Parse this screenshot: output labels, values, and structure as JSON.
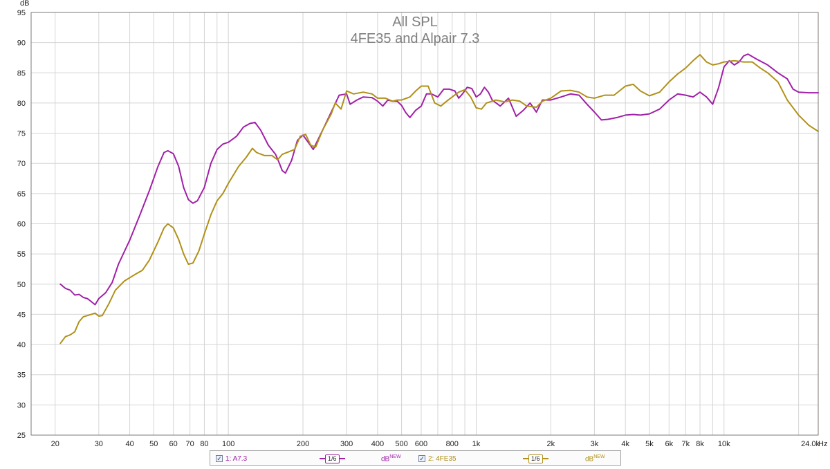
{
  "chart_data": {
    "type": "line",
    "title": "All SPL",
    "subtitle": "4FE35 and Alpair 7.3",
    "ylabel": "dB",
    "xunit": "Hz",
    "xscale": "log",
    "xlim": [
      16,
      24000
    ],
    "ylim": [
      25,
      95
    ],
    "grid": true,
    "yticks": [
      25,
      30,
      35,
      40,
      45,
      50,
      55,
      60,
      65,
      70,
      75,
      80,
      85,
      90,
      95
    ],
    "xticks": [
      {
        "v": 20,
        "label": "20"
      },
      {
        "v": 30,
        "label": "30"
      },
      {
        "v": 40,
        "label": "40"
      },
      {
        "v": 50,
        "label": "50"
      },
      {
        "v": 60,
        "label": "60"
      },
      {
        "v": 70,
        "label": "70"
      },
      {
        "v": 80,
        "label": "80"
      },
      {
        "v": 100,
        "label": "100"
      },
      {
        "v": 200,
        "label": "200"
      },
      {
        "v": 300,
        "label": "300"
      },
      {
        "v": 400,
        "label": "400"
      },
      {
        "v": 500,
        "label": "500"
      },
      {
        "v": 600,
        "label": "600"
      },
      {
        "v": 800,
        "label": "800"
      },
      {
        "v": 1000,
        "label": "1k"
      },
      {
        "v": 2000,
        "label": "2k"
      },
      {
        "v": 3000,
        "label": "3k"
      },
      {
        "v": 4000,
        "label": "4k"
      },
      {
        "v": 5000,
        "label": "5k"
      },
      {
        "v": 6000,
        "label": "6k"
      },
      {
        "v": 7000,
        "label": "7k"
      },
      {
        "v": 8000,
        "label": "8k"
      },
      {
        "v": 10000,
        "label": "10k"
      },
      {
        "v": 24000,
        "label": "24.0k"
      }
    ],
    "series": [
      {
        "name": "1: A7.3",
        "color": "#a020a8",
        "points": [
          [
            21,
            50.0
          ],
          [
            22,
            49.3
          ],
          [
            23,
            49.0
          ],
          [
            24,
            48.2
          ],
          [
            25,
            48.3
          ],
          [
            26,
            47.8
          ],
          [
            27,
            47.6
          ],
          [
            28,
            47.1
          ],
          [
            29,
            46.6
          ],
          [
            30,
            47.6
          ],
          [
            32,
            48.6
          ],
          [
            34,
            50.3
          ],
          [
            36,
            53.3
          ],
          [
            40,
            57.3
          ],
          [
            44,
            61.5
          ],
          [
            48,
            65.5
          ],
          [
            52,
            69.5
          ],
          [
            55,
            71.8
          ],
          [
            57,
            72.1
          ],
          [
            60,
            71.6
          ],
          [
            63,
            69.5
          ],
          [
            66,
            66.0
          ],
          [
            69,
            64.0
          ],
          [
            72,
            63.4
          ],
          [
            75,
            63.8
          ],
          [
            80,
            66.0
          ],
          [
            85,
            70.0
          ],
          [
            90,
            72.3
          ],
          [
            95,
            73.2
          ],
          [
            100,
            73.5
          ],
          [
            108,
            74.5
          ],
          [
            115,
            76.0
          ],
          [
            122,
            76.6
          ],
          [
            128,
            76.8
          ],
          [
            135,
            75.5
          ],
          [
            145,
            73.0
          ],
          [
            155,
            71.5
          ],
          [
            160,
            70.2
          ],
          [
            165,
            68.8
          ],
          [
            170,
            68.4
          ],
          [
            180,
            70.5
          ],
          [
            190,
            73.8
          ],
          [
            200,
            74.7
          ],
          [
            210,
            73.5
          ],
          [
            220,
            72.3
          ],
          [
            240,
            75.5
          ],
          [
            260,
            78.5
          ],
          [
            280,
            81.3
          ],
          [
            300,
            81.5
          ],
          [
            310,
            79.8
          ],
          [
            330,
            80.5
          ],
          [
            350,
            81.0
          ],
          [
            380,
            80.9
          ],
          [
            400,
            80.3
          ],
          [
            420,
            79.5
          ],
          [
            440,
            80.5
          ],
          [
            460,
            80.3
          ],
          [
            480,
            80.3
          ],
          [
            500,
            79.6
          ],
          [
            520,
            78.4
          ],
          [
            540,
            77.6
          ],
          [
            570,
            78.8
          ],
          [
            600,
            79.5
          ],
          [
            630,
            81.5
          ],
          [
            660,
            81.5
          ],
          [
            700,
            81.0
          ],
          [
            740,
            82.3
          ],
          [
            780,
            82.3
          ],
          [
            820,
            82.0
          ],
          [
            850,
            80.8
          ],
          [
            880,
            81.5
          ],
          [
            920,
            82.6
          ],
          [
            960,
            82.4
          ],
          [
            1000,
            81.0
          ],
          [
            1040,
            81.5
          ],
          [
            1080,
            82.6
          ],
          [
            1120,
            81.8
          ],
          [
            1160,
            80.5
          ],
          [
            1250,
            79.5
          ],
          [
            1350,
            80.8
          ],
          [
            1450,
            77.8
          ],
          [
            1550,
            78.8
          ],
          [
            1650,
            80.0
          ],
          [
            1750,
            78.5
          ],
          [
            1850,
            80.5
          ],
          [
            2000,
            80.5
          ],
          [
            2200,
            81.0
          ],
          [
            2400,
            81.5
          ],
          [
            2600,
            81.3
          ],
          [
            2800,
            79.8
          ],
          [
            3000,
            78.5
          ],
          [
            3200,
            77.2
          ],
          [
            3400,
            77.3
          ],
          [
            3700,
            77.6
          ],
          [
            4000,
            78.0
          ],
          [
            4300,
            78.1
          ],
          [
            4600,
            78.0
          ],
          [
            5000,
            78.2
          ],
          [
            5500,
            79.0
          ],
          [
            6000,
            80.5
          ],
          [
            6500,
            81.5
          ],
          [
            7000,
            81.3
          ],
          [
            7500,
            81.0
          ],
          [
            8000,
            81.8
          ],
          [
            8500,
            81.0
          ],
          [
            9000,
            79.8
          ],
          [
            9500,
            82.5
          ],
          [
            10000,
            86.0
          ],
          [
            10500,
            87.0
          ],
          [
            11000,
            86.3
          ],
          [
            11500,
            86.8
          ],
          [
            12000,
            87.8
          ],
          [
            12500,
            88.1
          ],
          [
            13500,
            87.3
          ],
          [
            15000,
            86.3
          ],
          [
            16500,
            85.0
          ],
          [
            18000,
            84.0
          ],
          [
            19000,
            82.3
          ],
          [
            20000,
            81.8
          ],
          [
            22000,
            81.7
          ],
          [
            24000,
            81.7
          ]
        ]
      },
      {
        "name": "2: 4FE35",
        "color": "#b09018",
        "points": [
          [
            21,
            40.2
          ],
          [
            22,
            41.3
          ],
          [
            23,
            41.6
          ],
          [
            24,
            42.1
          ],
          [
            25,
            43.8
          ],
          [
            26,
            44.6
          ],
          [
            27,
            44.8
          ],
          [
            28,
            45.0
          ],
          [
            29,
            45.2
          ],
          [
            30,
            44.7
          ],
          [
            31,
            44.8
          ],
          [
            33,
            46.8
          ],
          [
            35,
            49.0
          ],
          [
            38,
            50.5
          ],
          [
            42,
            51.6
          ],
          [
            45,
            52.3
          ],
          [
            48,
            54.0
          ],
          [
            52,
            57.0
          ],
          [
            55,
            59.3
          ],
          [
            57,
            60.0
          ],
          [
            60,
            59.3
          ],
          [
            63,
            57.4
          ],
          [
            66,
            55.0
          ],
          [
            69,
            53.3
          ],
          [
            72,
            53.5
          ],
          [
            76,
            55.5
          ],
          [
            80,
            58.3
          ],
          [
            85,
            61.5
          ],
          [
            90,
            63.8
          ],
          [
            95,
            65.0
          ],
          [
            100,
            66.7
          ],
          [
            110,
            69.5
          ],
          [
            118,
            71.0
          ],
          [
            125,
            72.5
          ],
          [
            130,
            71.8
          ],
          [
            140,
            71.3
          ],
          [
            150,
            71.3
          ],
          [
            158,
            70.6
          ],
          [
            165,
            71.5
          ],
          [
            175,
            71.9
          ],
          [
            185,
            72.3
          ],
          [
            195,
            74.5
          ],
          [
            205,
            74.8
          ],
          [
            215,
            73.0
          ],
          [
            225,
            72.7
          ],
          [
            240,
            75.5
          ],
          [
            260,
            78.2
          ],
          [
            270,
            80.0
          ],
          [
            285,
            79.0
          ],
          [
            300,
            82.0
          ],
          [
            320,
            81.5
          ],
          [
            350,
            81.8
          ],
          [
            380,
            81.5
          ],
          [
            400,
            80.8
          ],
          [
            430,
            80.8
          ],
          [
            460,
            80.3
          ],
          [
            480,
            80.5
          ],
          [
            500,
            80.5
          ],
          [
            540,
            81.0
          ],
          [
            570,
            82.0
          ],
          [
            600,
            82.8
          ],
          [
            640,
            82.8
          ],
          [
            680,
            80.0
          ],
          [
            720,
            79.5
          ],
          [
            760,
            80.3
          ],
          [
            800,
            81.0
          ],
          [
            850,
            81.8
          ],
          [
            900,
            82.2
          ],
          [
            950,
            81.0
          ],
          [
            1000,
            79.2
          ],
          [
            1050,
            79.0
          ],
          [
            1100,
            80.0
          ],
          [
            1200,
            80.5
          ],
          [
            1300,
            80.2
          ],
          [
            1400,
            80.5
          ],
          [
            1500,
            80.3
          ],
          [
            1600,
            79.5
          ],
          [
            1750,
            79.3
          ],
          [
            1850,
            80.3
          ],
          [
            2000,
            80.8
          ],
          [
            2200,
            82.0
          ],
          [
            2400,
            82.1
          ],
          [
            2600,
            81.8
          ],
          [
            2800,
            81.0
          ],
          [
            3000,
            80.8
          ],
          [
            3300,
            81.3
          ],
          [
            3600,
            81.3
          ],
          [
            4000,
            82.8
          ],
          [
            4300,
            83.1
          ],
          [
            4600,
            82.0
          ],
          [
            5000,
            81.2
          ],
          [
            5500,
            81.8
          ],
          [
            6000,
            83.5
          ],
          [
            6500,
            84.8
          ],
          [
            7000,
            85.8
          ],
          [
            7500,
            87.0
          ],
          [
            8000,
            88.0
          ],
          [
            8500,
            86.8
          ],
          [
            9000,
            86.3
          ],
          [
            9500,
            86.5
          ],
          [
            10000,
            86.8
          ],
          [
            11000,
            87.0
          ],
          [
            12000,
            86.8
          ],
          [
            13000,
            86.8
          ],
          [
            14000,
            85.8
          ],
          [
            15000,
            85.0
          ],
          [
            16500,
            83.5
          ],
          [
            18000,
            80.5
          ],
          [
            20000,
            78.0
          ],
          [
            22000,
            76.3
          ],
          [
            24000,
            75.3
          ]
        ]
      }
    ]
  },
  "legend": {
    "items": [
      {
        "name": "1: A7.3",
        "checked": "✓",
        "smoothing": "1/6",
        "db": "dB",
        "db_sup": "NEW",
        "color": "#a020a8"
      },
      {
        "name": "2: 4FE35",
        "checked": "✓",
        "smoothing": "1/6",
        "db": "dB",
        "db_sup": "NEW",
        "color": "#b09018"
      }
    ]
  }
}
